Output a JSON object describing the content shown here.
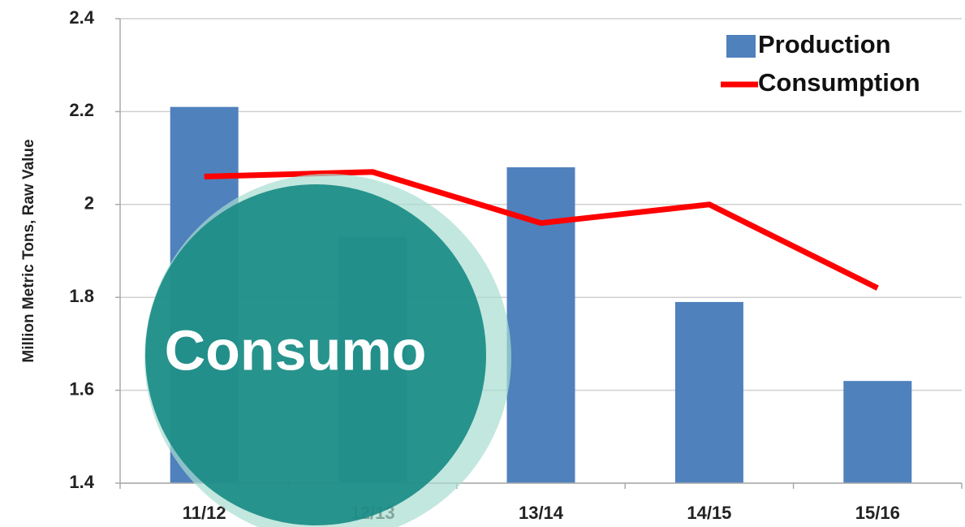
{
  "chart_data": {
    "type": "bar_line",
    "y_label": "Million Metric Tons, Raw Value",
    "categories": [
      "11/12",
      "12/13",
      "13/14",
      "14/15",
      "15/16"
    ],
    "series": [
      {
        "name": "Production",
        "type": "bar",
        "color": "#4f81bd",
        "values": [
          2.21,
          1.93,
          2.08,
          1.79,
          1.62
        ]
      },
      {
        "name": "Consumption",
        "type": "line",
        "color": "#ff0000",
        "values": [
          2.06,
          2.07,
          1.96,
          2.0,
          1.82
        ]
      }
    ],
    "ylim": [
      1.4,
      2.4
    ],
    "yticks": [
      1.4,
      1.6,
      1.8,
      2,
      2.2,
      2.4
    ],
    "grid": true,
    "legend": "top-right",
    "overlay_label": "Consumo"
  }
}
